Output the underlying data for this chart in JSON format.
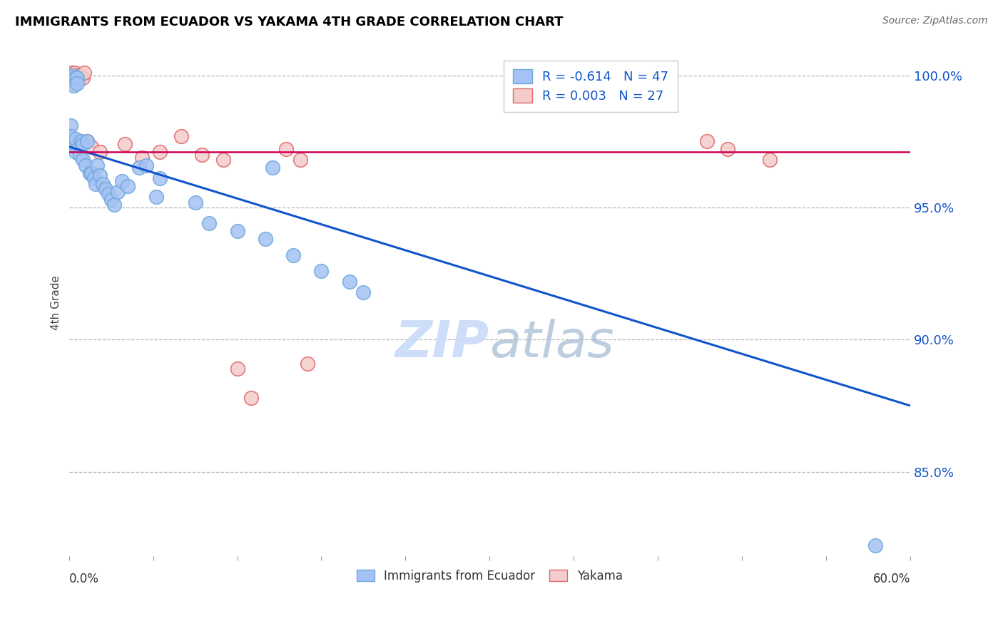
{
  "title": "IMMIGRANTS FROM ECUADOR VS YAKAMA 4TH GRADE CORRELATION CHART",
  "source": "Source: ZipAtlas.com",
  "ylabel": "4th Grade",
  "ytick_labels": [
    "100.0%",
    "95.0%",
    "90.0%",
    "85.0%"
  ],
  "ytick_values": [
    1.0,
    0.95,
    0.9,
    0.85
  ],
  "xlim": [
    0.0,
    0.6
  ],
  "ylim": [
    0.818,
    1.01
  ],
  "legend_blue_label": "Immigrants from Ecuador",
  "legend_pink_label": "Yakama",
  "legend_R_blue": "R = -0.614",
  "legend_N_blue": "N = 47",
  "legend_R_pink": "R = 0.003",
  "legend_N_pink": "N = 27",
  "blue_scatter_x": [
    0.001,
    0.001,
    0.002,
    0.002,
    0.003,
    0.003,
    0.004,
    0.004,
    0.005,
    0.005,
    0.006,
    0.006,
    0.007,
    0.008,
    0.009,
    0.01,
    0.01,
    0.012,
    0.013,
    0.015,
    0.016,
    0.018,
    0.019,
    0.02,
    0.022,
    0.024,
    0.026,
    0.028,
    0.03,
    0.032,
    0.035,
    0.038,
    0.042,
    0.05,
    0.055,
    0.062,
    0.065,
    0.09,
    0.1,
    0.12,
    0.14,
    0.145,
    0.16,
    0.18,
    0.2,
    0.21,
    0.575
  ],
  "blue_scatter_y": [
    0.981,
    0.977,
    0.974,
    0.998,
    0.996,
    1.0,
    0.999,
    0.973,
    0.976,
    0.971,
    0.999,
    0.997,
    0.972,
    0.97,
    0.975,
    0.974,
    0.968,
    0.966,
    0.975,
    0.963,
    0.963,
    0.961,
    0.959,
    0.966,
    0.962,
    0.959,
    0.957,
    0.955,
    0.953,
    0.951,
    0.956,
    0.96,
    0.958,
    0.965,
    0.966,
    0.954,
    0.961,
    0.952,
    0.944,
    0.941,
    0.938,
    0.965,
    0.932,
    0.926,
    0.922,
    0.918,
    0.822
  ],
  "pink_scatter_x": [
    0.001,
    0.002,
    0.003,
    0.004,
    0.005,
    0.006,
    0.007,
    0.008,
    0.01,
    0.011,
    0.013,
    0.016,
    0.022,
    0.04,
    0.052,
    0.065,
    0.08,
    0.095,
    0.11,
    0.12,
    0.13,
    0.155,
    0.165,
    0.17,
    0.455,
    0.47,
    0.5
  ],
  "pink_scatter_y": [
    1.0,
    1.001,
    1.0,
    1.001,
    0.999,
    1.0,
    0.999,
    1.0,
    0.999,
    1.001,
    0.975,
    0.973,
    0.971,
    0.974,
    0.969,
    0.971,
    0.977,
    0.97,
    0.968,
    0.889,
    0.878,
    0.972,
    0.968,
    0.891,
    0.975,
    0.972,
    0.968
  ],
  "blue_line_x": [
    0.0,
    0.6
  ],
  "blue_line_y": [
    0.973,
    0.875
  ],
  "pink_line_x": [
    0.0,
    0.6
  ],
  "pink_line_y": [
    0.971,
    0.971
  ],
  "blue_color": "#a4c2f4",
  "blue_edge_color": "#6fa8dc",
  "pink_color": "#f4cccc",
  "pink_edge_color": "#e06666",
  "blue_line_color": "#1155cc",
  "pink_line_color": "#cc0055",
  "watermark_color": "#c9daf8",
  "background_color": "#ffffff",
  "grid_color": "#b7b7b7"
}
